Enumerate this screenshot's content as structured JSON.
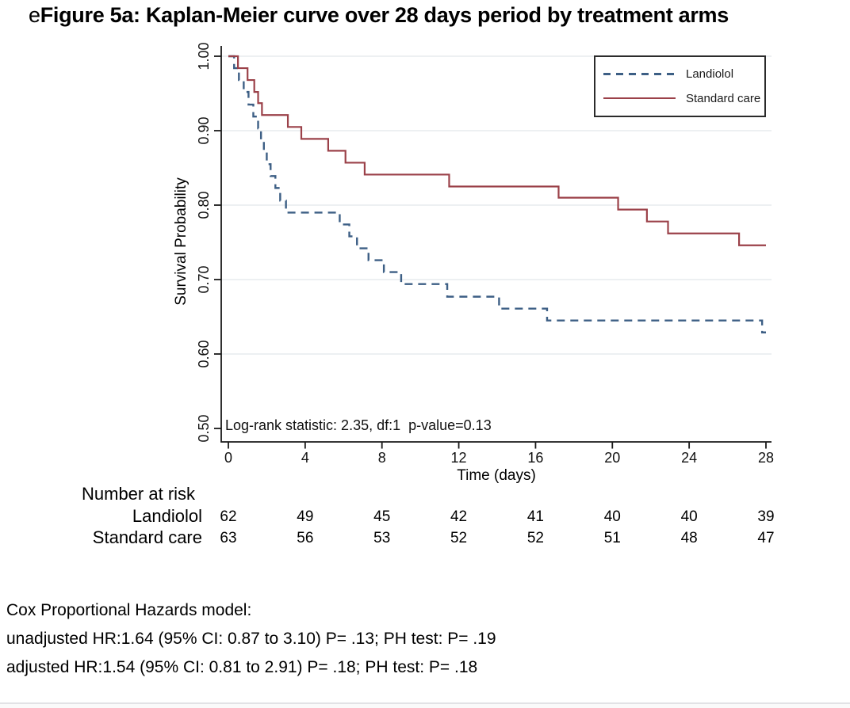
{
  "header": {
    "title_prefix": "e",
    "title_main": "Figure 5a: Kaplan-Meier curve over 28 days period by treatment arms"
  },
  "chart_data": {
    "type": "line",
    "subtype": "kaplan_meier_step",
    "xlabel": "Time (days)",
    "ylabel": "Survival Probability",
    "xlim": [
      0,
      28
    ],
    "ylim": [
      0.5,
      1.0
    ],
    "xticks": [
      0,
      4,
      8,
      12,
      16,
      20,
      24,
      28
    ],
    "ytick_labels": [
      "1.00",
      "0.90",
      "0.80",
      "0.70",
      "0.60",
      "0.50"
    ],
    "grid": true,
    "grid_color": "#e7ebed",
    "axis_color": "#1a1a1a",
    "legend_position": "top-right",
    "annotation": "Log-rank statistic: 2.35, df:1  p-value=0.13",
    "series": [
      {
        "name": "Landiolol",
        "color": "#3d5f85",
        "line_style": "dashed",
        "points": [
          [
            0,
            1.0
          ],
          [
            0.3,
            0.984
          ],
          [
            0.55,
            0.968
          ],
          [
            0.8,
            0.952
          ],
          [
            1.05,
            0.935
          ],
          [
            1.3,
            0.919
          ],
          [
            1.55,
            0.903
          ],
          [
            1.7,
            0.887
          ],
          [
            1.85,
            0.871
          ],
          [
            2.0,
            0.855
          ],
          [
            2.2,
            0.839
          ],
          [
            2.45,
            0.823
          ],
          [
            2.7,
            0.806
          ],
          [
            3.0,
            0.79
          ],
          [
            5.8,
            0.774
          ],
          [
            6.3,
            0.758
          ],
          [
            6.7,
            0.742
          ],
          [
            7.3,
            0.726
          ],
          [
            8.1,
            0.71
          ],
          [
            9.0,
            0.694
          ],
          [
            11.4,
            0.677
          ],
          [
            14.1,
            0.661
          ],
          [
            16.6,
            0.645
          ],
          [
            27.8,
            0.629
          ]
        ]
      },
      {
        "name": "Standard care",
        "color": "#9b4149",
        "line_style": "solid",
        "points": [
          [
            0,
            1.0
          ],
          [
            0.5,
            0.984
          ],
          [
            1.0,
            0.968
          ],
          [
            1.35,
            0.952
          ],
          [
            1.55,
            0.937
          ],
          [
            1.75,
            0.921
          ],
          [
            3.1,
            0.905
          ],
          [
            3.8,
            0.889
          ],
          [
            5.2,
            0.873
          ],
          [
            6.1,
            0.857
          ],
          [
            7.1,
            0.841
          ],
          [
            11.5,
            0.825
          ],
          [
            17.2,
            0.81
          ],
          [
            20.3,
            0.794
          ],
          [
            21.8,
            0.778
          ],
          [
            22.9,
            0.762
          ],
          [
            26.6,
            0.746
          ]
        ]
      }
    ],
    "risk_table": {
      "header": "Number at risk",
      "times": [
        0,
        4,
        8,
        12,
        16,
        20,
        24,
        28
      ],
      "rows": [
        {
          "label": "Landiolol",
          "values": [
            62,
            49,
            45,
            42,
            41,
            40,
            40,
            39
          ]
        },
        {
          "label": "Standard care",
          "values": [
            63,
            56,
            53,
            52,
            52,
            51,
            48,
            47
          ]
        }
      ]
    }
  },
  "footnotes": {
    "line1": "Cox Proportional Hazards model:",
    "line2": "unadjusted HR:1.64 (95% CI: 0.87 to 3.10) P= .13; PH test: P= .19",
    "line3": "adjusted HR:1.54 (95% CI: 0.81 to 2.91) P= .18; PH test: P= .18"
  }
}
